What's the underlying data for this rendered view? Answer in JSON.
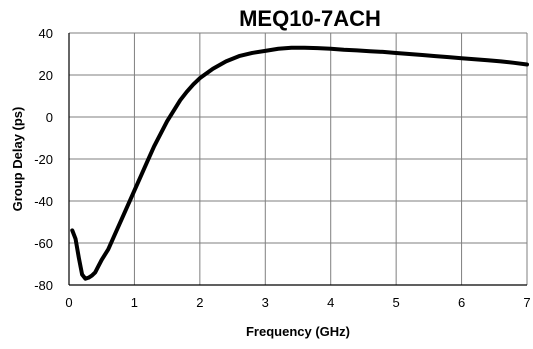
{
  "chart_data": {
    "type": "line",
    "title": "MEQ10-7ACH",
    "xlabel": "Frequency (GHz)",
    "ylabel": "Group Delay (ps)",
    "xlim": [
      0,
      7
    ],
    "ylim": [
      -80,
      40
    ],
    "xticks": [
      0,
      1,
      2,
      3,
      4,
      5,
      6,
      7
    ],
    "yticks": [
      40,
      20,
      0,
      -20,
      -40,
      -60,
      -80
    ],
    "grid": true,
    "legend": "none",
    "colors": {
      "line": "#000000",
      "grid": "#7f7f7f",
      "axis": "#000000",
      "background": "#ffffff"
    },
    "series": [
      {
        "x": [
          0.05,
          0.1,
          0.15,
          0.2,
          0.25,
          0.3,
          0.35,
          0.4,
          0.45,
          0.5,
          0.6,
          0.7,
          0.8,
          0.9,
          1.0,
          1.1,
          1.2,
          1.3,
          1.4,
          1.5,
          1.6,
          1.7,
          1.8,
          1.9,
          2.0,
          2.2,
          2.4,
          2.6,
          2.8,
          3.0,
          3.2,
          3.4,
          3.6,
          3.8,
          4.0,
          4.2,
          4.4,
          4.6,
          4.8,
          5.0,
          5.2,
          5.4,
          5.6,
          5.8,
          6.0,
          6.2,
          6.4,
          6.6,
          6.8,
          7.0
        ],
        "y": [
          -54,
          -58,
          -67,
          -75,
          -77,
          -76.5,
          -75.5,
          -74,
          -71,
          -68,
          -63,
          -56,
          -49,
          -42,
          -35,
          -28,
          -21,
          -14,
          -8,
          -2,
          3,
          8,
          12,
          15.5,
          18.5,
          23,
          26.5,
          29,
          30.5,
          31.5,
          32.5,
          33,
          33,
          32.8,
          32.5,
          32,
          31.7,
          31.3,
          31,
          30.5,
          30,
          29.5,
          29,
          28.5,
          28,
          27.5,
          27,
          26.5,
          25.8,
          25
        ]
      }
    ]
  }
}
